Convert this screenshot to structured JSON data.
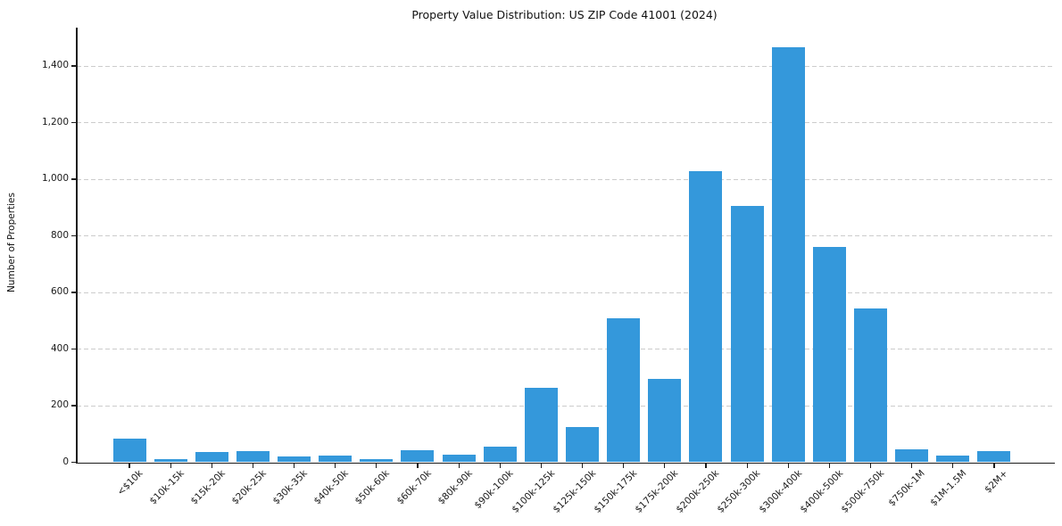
{
  "chart_data": {
    "type": "bar",
    "title": "Property Value Distribution: US ZIP Code 41001 (2024)",
    "xlabel": "",
    "ylabel": "Number of Properties",
    "categories": [
      "<$10k",
      "$10k-15k",
      "$15k-20k",
      "$20k-25k",
      "$30k-35k",
      "$40k-50k",
      "$50k-60k",
      "$60k-70k",
      "$80k-90k",
      "$90k-100k",
      "$100k-125k",
      "$125k-150k",
      "$150k-175k",
      "$175k-200k",
      "$200k-250k",
      "$250k-300k",
      "$300k-400k",
      "$400k-500k",
      "$500k-750k",
      "$750k-1M",
      "$1M-1.5M",
      "$2M+"
    ],
    "values": [
      85,
      10,
      35,
      40,
      22,
      23,
      12,
      43,
      28,
      55,
      262,
      125,
      510,
      295,
      1028,
      905,
      1465,
      760,
      542,
      45,
      23,
      38
    ],
    "ylim": [
      0,
      1535
    ],
    "yticks": [
      0,
      200,
      400,
      600,
      800,
      1000,
      1200,
      1400
    ],
    "ytick_labels": [
      "0",
      "200",
      "400",
      "600",
      "800",
      "1,000",
      "1,200",
      "1,400"
    ],
    "grid": "horizontal-dashed",
    "legend_position": "none",
    "bar_color": "#3498db",
    "xtick_rotation": 45
  }
}
